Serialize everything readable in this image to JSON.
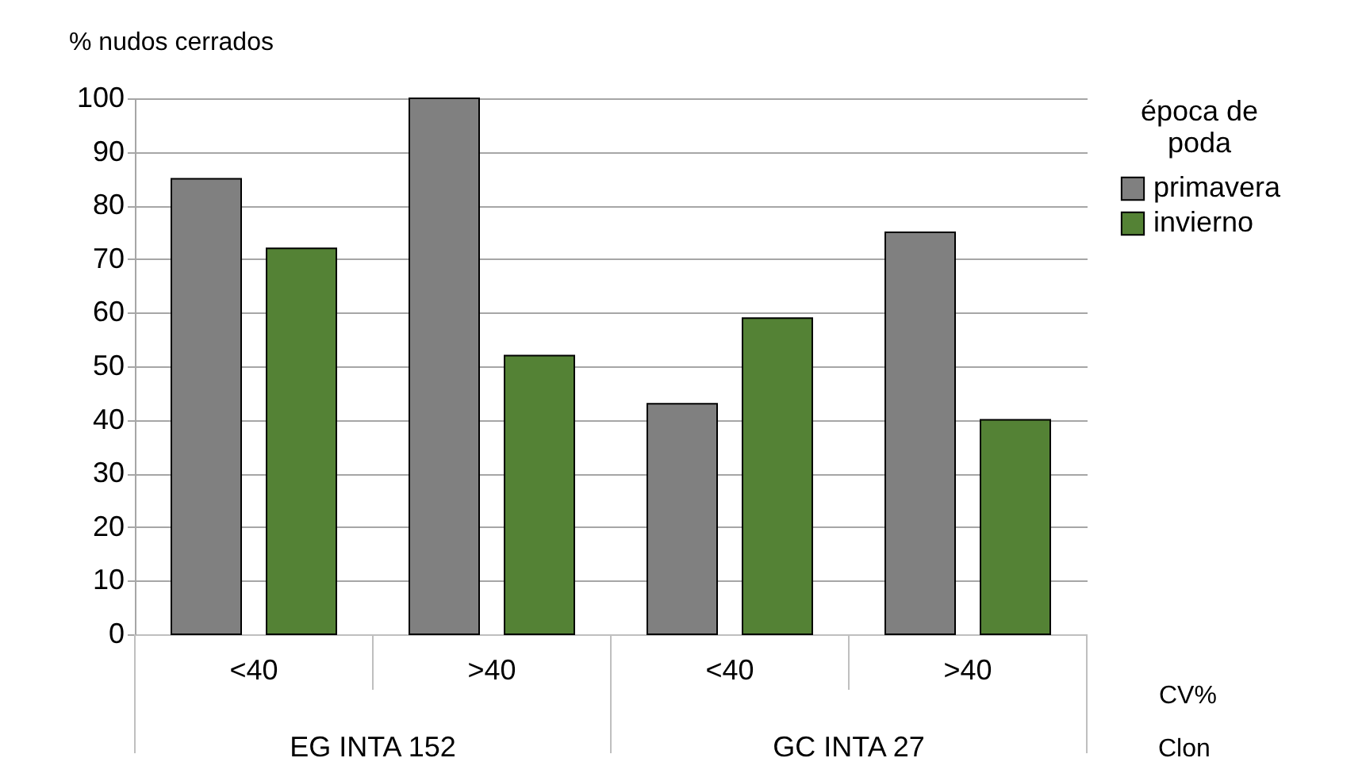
{
  "chart_data": {
    "type": "bar",
    "ylabel": "% nudos cerrados",
    "xlabel": "CV%",
    "legend_title": "época de poda",
    "categories": [
      "<40",
      ">40",
      "<40",
      ">40"
    ],
    "series": [
      {
        "name": "primavera",
        "color": "#808080",
        "values": [
          85,
          100,
          43,
          75
        ]
      },
      {
        "name": "invierno",
        "color": "#548235",
        "values": [
          72,
          52,
          59,
          40
        ]
      }
    ],
    "ylim": [
      0,
      100
    ],
    "yticks": [
      0,
      10,
      20,
      30,
      40,
      50,
      60,
      70,
      80,
      90,
      100
    ],
    "grid": "y",
    "legend": "right",
    "annotations": [
      "EG INTA 152",
      "GC INTA 27",
      "Clon"
    ]
  }
}
